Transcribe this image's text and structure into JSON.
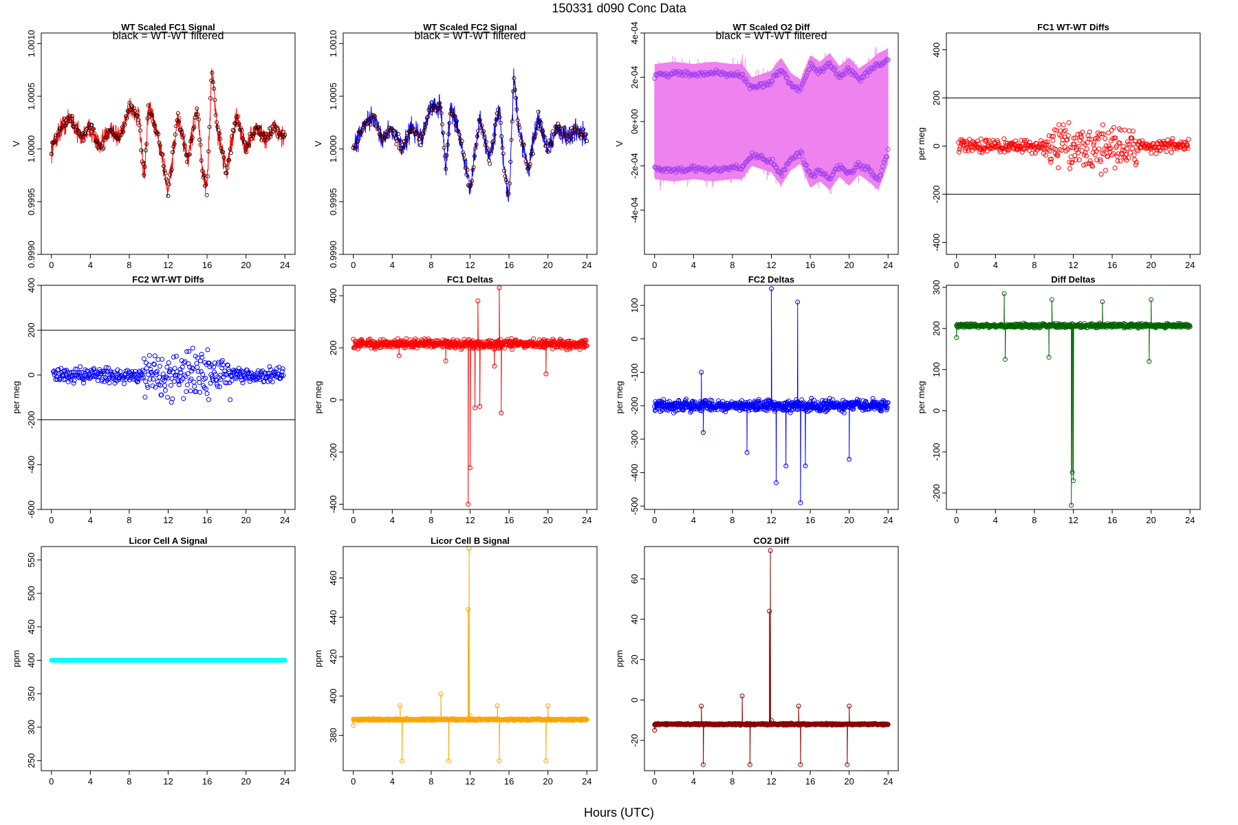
{
  "figure": {
    "title": "150331    d090    Conc Data",
    "xlabel": "Hours (UTC)"
  },
  "chart_data": [
    {
      "id": "p1",
      "type": "line",
      "title": "WT Scaled FC1 Signal",
      "subtitle": "black = WT-WT filtered",
      "ylabel": "V",
      "color": "#ff0000",
      "xlim": [
        0,
        24
      ],
      "ylim": [
        0.999,
        1.0011
      ],
      "xticks": [
        0,
        4,
        8,
        12,
        16,
        20,
        24
      ],
      "yticks": [
        0.999,
        0.9995,
        1.0,
        1.0005,
        1.001
      ],
      "ytick_labels": [
        "0.9990",
        "0.9995",
        "1.0000",
        "1.0005",
        "1.0010"
      ],
      "x": [
        0,
        1,
        2,
        3,
        4,
        5,
        6,
        7,
        8,
        9,
        9.5,
        10,
        11,
        12,
        13,
        14,
        15,
        15.5,
        16,
        16.5,
        17,
        18,
        19,
        20,
        21,
        22,
        23,
        24
      ],
      "values": [
        1.0,
        1.0002,
        1.0003,
        1.0001,
        1.0002,
        1.0,
        1.0002,
        1.0001,
        1.0004,
        1.0003,
        0.9997,
        1.0004,
        1.0001,
        0.9996,
        1.0003,
        0.9999,
        1.0004,
        0.9998,
        0.9996,
        1.0008,
        1.0002,
        0.9998,
        1.0003,
        1.0,
        1.0002,
        1.0001,
        1.0002,
        1.0001
      ],
      "spread": 0.00015
    },
    {
      "id": "p2",
      "type": "line",
      "title": "WT Scaled FC2 Signal",
      "subtitle": "black = WT-WT filtered",
      "ylabel": "V",
      "color": "#0000ff",
      "xlim": [
        0,
        24
      ],
      "ylim": [
        0.999,
        1.0011
      ],
      "xticks": [
        0,
        4,
        8,
        12,
        16,
        20,
        24
      ],
      "yticks": [
        0.999,
        0.9995,
        1.0,
        1.0005,
        1.001
      ],
      "ytick_labels": [
        "0.9990",
        "0.9995",
        "1.0000",
        "1.0005",
        "1.0010"
      ],
      "x": [
        0,
        1,
        2,
        3,
        4,
        5,
        6,
        7,
        8,
        9,
        9.5,
        10,
        11,
        12,
        13,
        14,
        15,
        15.5,
        16,
        16.5,
        17,
        18,
        19,
        20,
        21,
        22,
        23,
        24
      ],
      "values": [
        1.0,
        1.0002,
        1.0003,
        1.0001,
        1.0002,
        1.0,
        1.0002,
        1.0001,
        1.0004,
        1.0004,
        0.9998,
        1.0004,
        1.0001,
        0.9996,
        1.0003,
        0.9999,
        1.0004,
        0.9998,
        0.9995,
        1.0007,
        1.0002,
        0.9998,
        1.0003,
        1.0,
        1.0002,
        1.0001,
        1.0002,
        1.0001
      ],
      "spread": 0.00015
    },
    {
      "id": "p3",
      "type": "line",
      "title": "WT Scaled O2 Diff",
      "subtitle": "black = WT-WT filtered",
      "ylabel": "V",
      "color": "#a040f0",
      "fill_color": "#ee82ee",
      "xlim": [
        0,
        24
      ],
      "ylim": [
        -0.0006,
        0.0004
      ],
      "xticks": [
        0,
        4,
        8,
        12,
        16,
        20,
        24
      ],
      "yticks": [
        -0.0004,
        -0.0002,
        0,
        0.0002,
        0.0004
      ],
      "ytick_labels": [
        "-4e-04",
        "-2e-04",
        "0e+00",
        "2e-04",
        "4e-04"
      ],
      "x": [
        0,
        2,
        4,
        6,
        8,
        9,
        10,
        12,
        13,
        14,
        15,
        16,
        17,
        18,
        19,
        20,
        21,
        22,
        23,
        24
      ],
      "values": [
        0.00021,
        0.00022,
        0.00021,
        0.00022,
        0.00021,
        0.00021,
        0.00015,
        0.00018,
        0.00024,
        0.00017,
        0.00014,
        0.00025,
        0.00022,
        0.00026,
        0.0002,
        0.00024,
        0.00019,
        0.00022,
        0.00026,
        0.00028
      ],
      "values_lower": [
        -0.00021,
        -0.00022,
        -0.00021,
        -0.00022,
        -0.00021,
        -0.00021,
        -0.00015,
        -0.00018,
        -0.00024,
        -0.00017,
        -0.00014,
        -0.00025,
        -0.00022,
        -0.00026,
        -0.0002,
        -0.00024,
        -0.00019,
        -0.00022,
        -0.00026,
        -0.00014
      ]
    },
    {
      "id": "p4",
      "type": "scatter",
      "title": "FC1 WT-WT Diffs",
      "ylabel": "per meg",
      "color": "#ff0000",
      "xlim": [
        0,
        24
      ],
      "ylim": [
        -450,
        470
      ],
      "xticks": [
        0,
        4,
        8,
        12,
        16,
        20,
        24
      ],
      "yticks": [
        -400,
        -200,
        0,
        200,
        400
      ],
      "ytick_labels": [
        "-400",
        "-200",
        "0",
        "200",
        "400"
      ],
      "hlines": [
        -200,
        200
      ],
      "n_points": 420,
      "spread_calm": 40,
      "spread_noisy": 150
    },
    {
      "id": "p5",
      "type": "scatter",
      "title": "FC2 WT-WT Diffs",
      "ylabel": "per meg",
      "color": "#0000ff",
      "xlim": [
        0,
        24
      ],
      "ylim": [
        -600,
        400
      ],
      "xticks": [
        0,
        4,
        8,
        12,
        16,
        20,
        24
      ],
      "yticks": [
        -600,
        -400,
        -200,
        0,
        200,
        400
      ],
      "ytick_labels": [
        "-600",
        "-400",
        "-200",
        "0",
        "200",
        "400"
      ],
      "hlines": [
        -200,
        200
      ],
      "n_points": 420,
      "spread_calm": 45,
      "spread_noisy": 150
    },
    {
      "id": "p6",
      "type": "line",
      "title": "FC1 Deltas",
      "ylabel": "per meg",
      "color": "#ff0000",
      "xlim": [
        0,
        24
      ],
      "ylim": [
        -420,
        440
      ],
      "xticks": [
        0,
        4,
        8,
        12,
        16,
        20,
        24
      ],
      "yticks": [
        -400,
        -200,
        0,
        200,
        400
      ],
      "ytick_labels": [
        "-400",
        "-200",
        "0",
        "200",
        "400"
      ],
      "baseline": 215,
      "noise": 25,
      "spikes": [
        [
          4.7,
          170
        ],
        [
          9.5,
          150
        ],
        [
          11.8,
          -400
        ],
        [
          12,
          -260
        ],
        [
          12.5,
          -30
        ],
        [
          12.8,
          380
        ],
        [
          13,
          -25
        ],
        [
          14.5,
          130
        ],
        [
          15,
          430
        ],
        [
          15.2,
          -50
        ],
        [
          19.8,
          100
        ]
      ]
    },
    {
      "id": "p7",
      "type": "line",
      "title": "FC2 Deltas",
      "ylabel": "per meg",
      "color": "#0000ff",
      "xlim": [
        0,
        24
      ],
      "ylim": [
        -510,
        160
      ],
      "xticks": [
        0,
        4,
        8,
        12,
        16,
        20,
        24
      ],
      "yticks": [
        -500,
        -400,
        -300,
        -200,
        -100,
        0,
        100
      ],
      "ytick_labels": [
        "-500",
        "-400",
        "-300",
        "-200",
        "-100",
        "0",
        "100"
      ],
      "baseline": -200,
      "noise": 25,
      "spikes": [
        [
          4.8,
          -100
        ],
        [
          5,
          -280
        ],
        [
          9.5,
          -340
        ],
        [
          12,
          150
        ],
        [
          12.5,
          -430
        ],
        [
          13.5,
          -380
        ],
        [
          14.7,
          110
        ],
        [
          15,
          -490
        ],
        [
          15.5,
          -380
        ],
        [
          20,
          -360
        ]
      ]
    },
    {
      "id": "p8",
      "type": "line",
      "title": "Diff Deltas",
      "ylabel": "per meg",
      "color": "#006400",
      "xlim": [
        0,
        24
      ],
      "ylim": [
        -240,
        305
      ],
      "xticks": [
        0,
        4,
        8,
        12,
        16,
        20,
        24
      ],
      "yticks": [
        -200,
        -100,
        0,
        100,
        200,
        300
      ],
      "ytick_labels": [
        "-200",
        "-100",
        "0",
        "100",
        "200",
        "300"
      ],
      "baseline": 207,
      "noise": 7,
      "spikes": [
        [
          0,
          178
        ],
        [
          4.9,
          285
        ],
        [
          5,
          125
        ],
        [
          9.5,
          130
        ],
        [
          9.8,
          270
        ],
        [
          11.8,
          -230
        ],
        [
          11.9,
          -150
        ],
        [
          12,
          -170
        ],
        [
          15,
          265
        ],
        [
          19.8,
          120
        ],
        [
          20,
          270
        ]
      ]
    },
    {
      "id": "p9",
      "type": "line",
      "title": "Licor Cell A Signal",
      "ylabel": "ppm",
      "color": "#00ffff",
      "xlim": [
        0,
        24
      ],
      "ylim": [
        235,
        570
      ],
      "xticks": [
        0,
        4,
        8,
        12,
        16,
        20,
        24
      ],
      "yticks": [
        250,
        300,
        350,
        400,
        450,
        500,
        550
      ],
      "ytick_labels": [
        "250",
        "300",
        "350",
        "400",
        "450",
        "500",
        "550"
      ],
      "baseline": 400,
      "noise": 0,
      "spikes": []
    },
    {
      "id": "p10",
      "type": "line",
      "title": "Licor Cell B Signal",
      "ylabel": "ppm",
      "color": "#ffa500",
      "xlim": [
        0,
        24
      ],
      "ylim": [
        362,
        476
      ],
      "xticks": [
        0,
        4,
        8,
        12,
        16,
        20,
        24
      ],
      "yticks": [
        380,
        400,
        420,
        440,
        460
      ],
      "ytick_labels": [
        "380",
        "400",
        "420",
        "440",
        "460"
      ],
      "baseline": 388,
      "noise": 0.6,
      "spikes": [
        [
          0,
          385
        ],
        [
          4.8,
          395
        ],
        [
          5,
          367
        ],
        [
          9,
          401
        ],
        [
          9.8,
          367
        ],
        [
          11.8,
          444
        ],
        [
          11.9,
          475
        ],
        [
          12,
          390
        ],
        [
          14.8,
          395
        ],
        [
          15,
          367
        ],
        [
          19.8,
          367
        ],
        [
          20,
          395
        ]
      ]
    },
    {
      "id": "p11",
      "type": "line",
      "title": "CO2 Diff",
      "ylabel": "ppm",
      "color": "#8b0000",
      "xlim": [
        0,
        24
      ],
      "ylim": [
        -35,
        76
      ],
      "xticks": [
        0,
        4,
        8,
        12,
        16,
        20,
        24
      ],
      "yticks": [
        -20,
        0,
        20,
        40,
        60
      ],
      "ytick_labels": [
        "-20",
        "0",
        "20",
        "40",
        "60"
      ],
      "baseline": -12,
      "noise": 0.6,
      "spikes": [
        [
          0,
          -15
        ],
        [
          4.8,
          -3
        ],
        [
          5,
          -32
        ],
        [
          9,
          2
        ],
        [
          9.8,
          -32
        ],
        [
          11.8,
          44
        ],
        [
          11.9,
          74
        ],
        [
          12,
          -10
        ],
        [
          14.8,
          -3
        ],
        [
          15,
          -32
        ],
        [
          19.8,
          -32
        ],
        [
          20,
          -3
        ]
      ]
    }
  ]
}
